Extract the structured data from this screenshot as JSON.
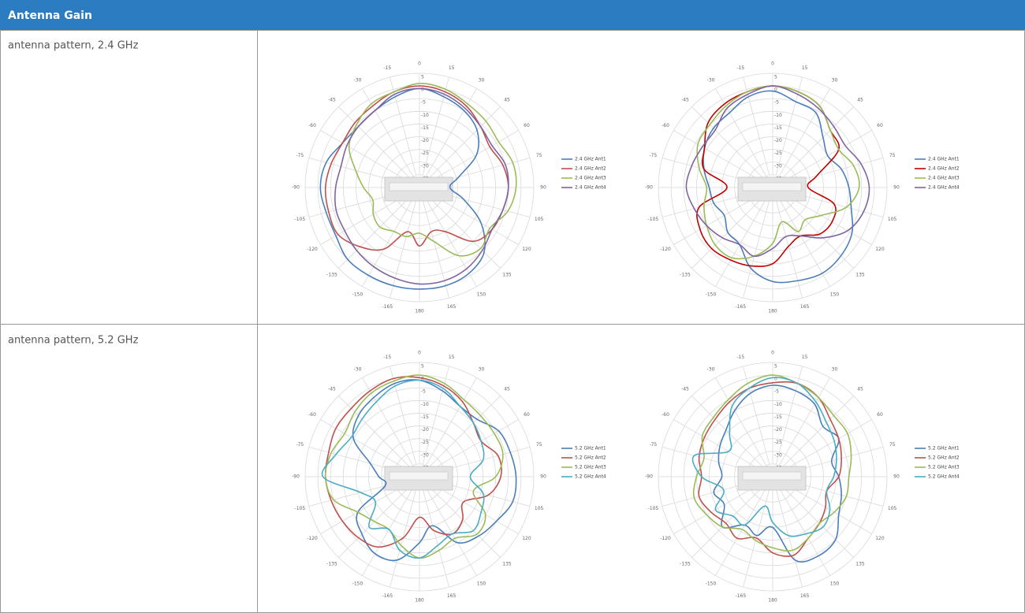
{
  "header": {
    "title": "Antenna Gain"
  },
  "rows": [
    {
      "label": "antenna pattern, 2.4 GHz"
    },
    {
      "label": "antenna pattern, 5.2 GHz"
    }
  ],
  "chart_data": [
    {
      "type": "polar",
      "x": [
        0,
        15,
        30,
        45,
        60,
        75,
        90,
        105,
        120,
        135,
        150,
        165,
        180,
        -165,
        -150,
        -135,
        -120,
        -105,
        -90,
        -75,
        -60,
        -45,
        -30,
        -15
      ],
      "xticks": [
        0,
        15,
        30,
        45,
        60,
        75,
        90,
        105,
        120,
        135,
        150,
        165,
        180,
        -165,
        -150,
        -135,
        -120,
        -105,
        -90,
        -75,
        -60,
        -45,
        -30,
        -15
      ],
      "ylim": [
        -40,
        5
      ],
      "yticks": [
        5,
        0,
        -5,
        -10,
        -15,
        -20,
        -25,
        -30,
        -35
      ],
      "series": [
        {
          "name": "2.4 GHz Ant1",
          "color": "#4a7ebb",
          "values": [
            -1,
            -3,
            -5,
            -8,
            -14,
            -24,
            -28,
            -22,
            -12,
            -4,
            -1,
            0,
            0,
            0,
            0,
            0,
            -2,
            -2,
            -1,
            -2,
            -5,
            -6,
            -5,
            -3
          ]
        },
        {
          "name": "2.4 GHz Ant2",
          "color": "#c0504d",
          "values": [
            0,
            -1,
            -3,
            -6,
            -8,
            -6,
            -5,
            -6,
            -7,
            -10,
            -20,
            -22,
            -17,
            -22,
            -12,
            -7,
            -3,
            -3,
            -3,
            -4,
            -5,
            -4,
            -3,
            -1
          ]
        },
        {
          "name": "2.4 GHz Ant3",
          "color": "#9bbb59",
          "values": [
            1,
            0,
            -2,
            -3,
            -4,
            -2,
            -2,
            -4,
            -8,
            -6,
            -9,
            -18,
            -22,
            -20,
            -20,
            -18,
            -19,
            -21,
            -18,
            -14,
            -8,
            -5,
            -2,
            -1
          ]
        },
        {
          "name": "2.4 GHz Ant4",
          "color": "#8064a2",
          "values": [
            -1,
            -2,
            -4,
            -6,
            -7,
            -5,
            -5,
            -6,
            -7,
            -5,
            -3,
            -2,
            -2,
            -3,
            -4,
            -5,
            -6,
            -6,
            -7,
            -8,
            -7,
            -6,
            -5,
            -2
          ]
        }
      ]
    },
    {
      "type": "polar",
      "x": [
        0,
        15,
        30,
        45,
        60,
        75,
        90,
        105,
        120,
        135,
        150,
        165,
        180,
        -165,
        -150,
        -135,
        -120,
        -105,
        -90,
        -75,
        -60,
        -45,
        -30,
        -15
      ],
      "xticks": [
        0,
        15,
        30,
        45,
        60,
        75,
        90,
        105,
        120,
        135,
        150,
        165,
        180,
        -165,
        -150,
        -135,
        -120,
        -105,
        -90,
        -75,
        -60,
        -45,
        -30,
        -15
      ],
      "ylim": [
        -40,
        5
      ],
      "yticks": [
        5,
        0,
        -5,
        -10,
        -15,
        -20,
        -25,
        -30,
        -35
      ],
      "series": [
        {
          "name": "2.4 GHz Ant1",
          "color": "#4a7ebb",
          "values": [
            -2,
            -5,
            -6,
            -12,
            -15,
            -12,
            -10,
            -8,
            -4,
            -2,
            -1,
            -2,
            -3,
            -7,
            -14,
            -15,
            -18,
            -16,
            -15,
            -12,
            -9,
            -7,
            -6,
            -3
          ]
        },
        {
          "name": "2.4 GHz Ant2",
          "color": "#c00000",
          "values": [
            0,
            -1,
            -3,
            -8,
            -10,
            -22,
            -26,
            -15,
            -13,
            -14,
            -18,
            -16,
            -10,
            -8,
            -7,
            -6,
            -7,
            -10,
            -22,
            -12,
            -9,
            -4,
            -2,
            -1
          ]
        },
        {
          "name": "2.4 GHz Ant3",
          "color": "#9bbb59",
          "values": [
            0,
            -1,
            -3,
            -8,
            -10,
            -7,
            -6,
            -10,
            -18,
            -22,
            -20,
            -26,
            -18,
            -12,
            -8,
            -8,
            -10,
            -12,
            -14,
            -10,
            -6,
            -5,
            -3,
            -1
          ]
        },
        {
          "name": "2.4 GHz Ant4",
          "color": "#8064a2",
          "values": [
            0,
            -2,
            -4,
            -6,
            -7,
            -4,
            -2,
            -3,
            -6,
            -12,
            -18,
            -20,
            -16,
            -12,
            -14,
            -12,
            -10,
            -8,
            -6,
            -7,
            -8,
            -8,
            -4,
            -2
          ]
        }
      ]
    },
    {
      "type": "polar",
      "x": [
        0,
        15,
        30,
        45,
        60,
        75,
        90,
        105,
        120,
        135,
        150,
        165,
        180,
        -165,
        -150,
        -135,
        -120,
        -105,
        -90,
        -75,
        -60,
        -45,
        -30,
        -15
      ],
      "xticks": [
        0,
        15,
        30,
        45,
        60,
        75,
        90,
        105,
        120,
        135,
        150,
        165,
        180,
        -165,
        -150,
        -135,
        -120,
        -105,
        -90,
        -75,
        -60,
        -45,
        -30,
        -15
      ],
      "ylim": [
        -40,
        5
      ],
      "yticks": [
        5,
        0,
        -5,
        -10,
        -15,
        -20,
        -25,
        -30,
        -35
      ],
      "series": [
        {
          "name": "5.2 GHz Ant1",
          "color": "#4a7ebb",
          "values": [
            -2,
            -5,
            -8,
            -8,
            -4,
            -3,
            -2,
            -2,
            -5,
            -7,
            -10,
            -20,
            -14,
            -6,
            -5,
            -8,
            -12,
            -26,
            -24,
            -20,
            -10,
            -6,
            -4,
            -2
          ]
        },
        {
          "name": "5.2 GHz Ant2",
          "color": "#c0504d",
          "values": [
            -1,
            -3,
            -6,
            -10,
            -12,
            -8,
            -8,
            -12,
            -20,
            -16,
            -14,
            -18,
            -24,
            -15,
            -8,
            -6,
            -5,
            -4,
            -3,
            -3,
            -2,
            -2,
            -1,
            0
          ]
        },
        {
          "name": "5.2 GHz Ant3",
          "color": "#9bbb59",
          "values": [
            0,
            -2,
            -5,
            -6,
            -6,
            -6,
            -10,
            -18,
            -10,
            -8,
            -12,
            -10,
            -8,
            -12,
            -16,
            -15,
            -12,
            -5,
            -3,
            -4,
            -6,
            -4,
            -2,
            -1
          ]
        },
        {
          "name": "5.2 GHz Ant4",
          "color": "#4bacc6",
          "values": [
            -2,
            -4,
            -8,
            -10,
            -12,
            -14,
            -20,
            -14,
            -12,
            -10,
            -14,
            -12,
            -8,
            -10,
            -16,
            -12,
            -20,
            -16,
            -2,
            -6,
            -9,
            -8,
            -6,
            -3
          ]
        }
      ]
    },
    {
      "type": "polar",
      "x": [
        0,
        15,
        30,
        45,
        60,
        75,
        90,
        105,
        120,
        135,
        150,
        165,
        180,
        -165,
        -150,
        -135,
        -120,
        -105,
        -90,
        -75,
        -60,
        -45,
        -30,
        -15
      ],
      "xticks": [
        0,
        15,
        30,
        45,
        60,
        75,
        90,
        105,
        120,
        135,
        150,
        165,
        180,
        -165,
        -150,
        -135,
        -120,
        -105,
        -90,
        -75,
        -60,
        -45,
        -30,
        -15
      ],
      "ylim": [
        -40,
        5
      ],
      "yticks": [
        5,
        0,
        -5,
        -10,
        -15,
        -20,
        -25,
        -30,
        -35
      ],
      "series": [
        {
          "name": "5.2 GHz Ant1",
          "color": "#4a7ebb",
          "values": [
            -4,
            -5,
            -7,
            -12,
            -10,
            -16,
            -14,
            -12,
            -10,
            -5,
            -4,
            -6,
            -20,
            -16,
            -18,
            -12,
            -18,
            -16,
            -20,
            -18,
            -16,
            -14,
            -10,
            -6
          ]
        },
        {
          "name": "5.2 GHz Ant2",
          "color": "#c0504d",
          "values": [
            -3,
            -2,
            -4,
            -8,
            -10,
            -12,
            -14,
            -18,
            -16,
            -14,
            -12,
            -8,
            -10,
            -15,
            -12,
            -14,
            -12,
            -10,
            -12,
            -10,
            -9,
            -8,
            -6,
            -4
          ]
        },
        {
          "name": "5.2 GHz Ant3",
          "color": "#9bbb59",
          "values": [
            0,
            -2,
            -4,
            -6,
            -6,
            -8,
            -10,
            -10,
            -12,
            -14,
            -12,
            -10,
            -12,
            -14,
            -16,
            -12,
            -10,
            -8,
            -10,
            -12,
            -8,
            -7,
            -5,
            -2
          ]
        },
        {
          "name": "5.2 GHz Ant4",
          "color": "#4bacc6",
          "values": [
            -1,
            -2,
            -6,
            -10,
            -12,
            -14,
            -16,
            -18,
            -14,
            -12,
            -14,
            -16,
            -22,
            -28,
            -18,
            -18,
            -14,
            -20,
            -12,
            -8,
            -20,
            -16,
            -8,
            -4
          ]
        }
      ]
    }
  ]
}
